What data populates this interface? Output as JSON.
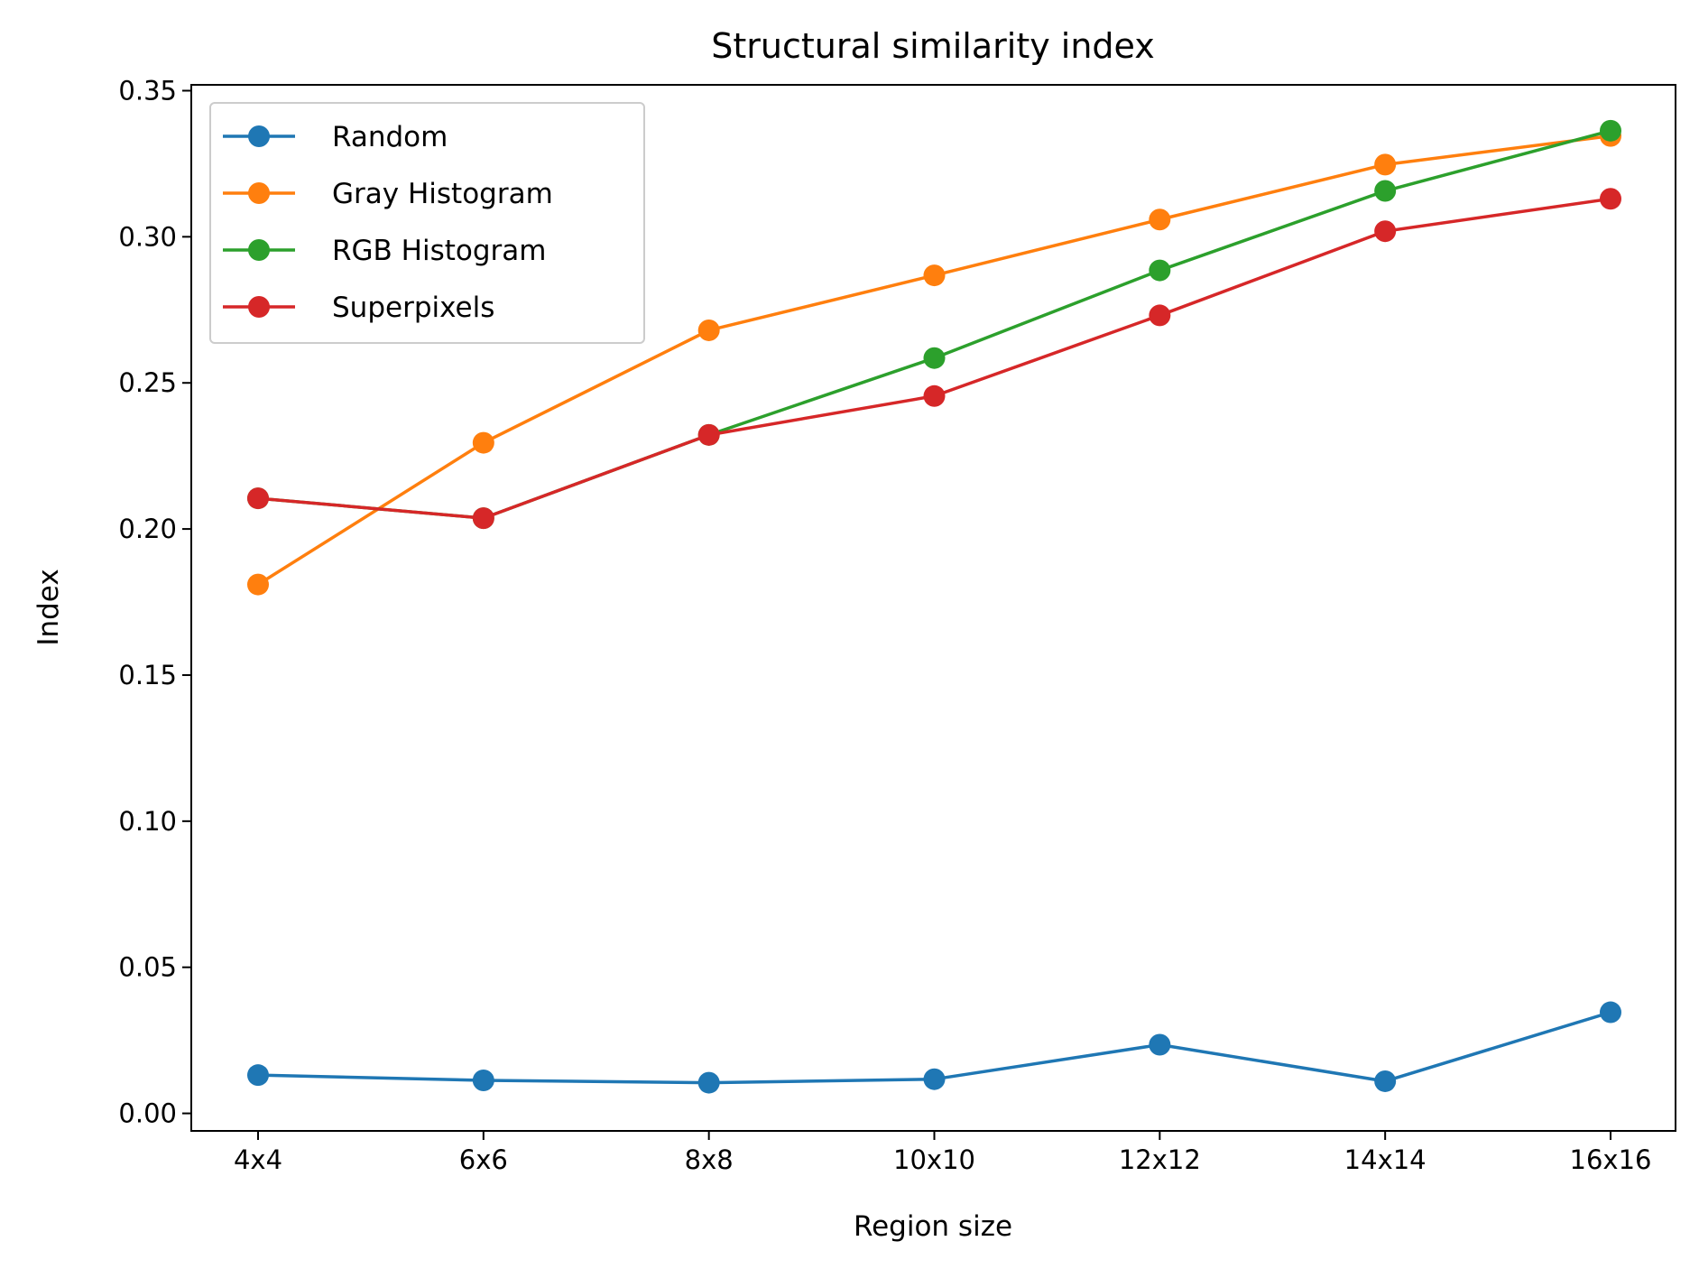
{
  "chart_data": {
    "type": "line",
    "title": "Structural similarity index",
    "xlabel": "Region size",
    "ylabel": "Index",
    "categories": [
      "4x4",
      "6x6",
      "8x8",
      "10x10",
      "12x12",
      "14x14",
      "16x16"
    ],
    "ylim": [
      -0.006,
      0.352
    ],
    "yticks": [
      0.0,
      0.05,
      0.1,
      0.15,
      0.2,
      0.25,
      0.3,
      0.35
    ],
    "ytick_labels": [
      "0.00",
      "0.05",
      "0.10",
      "0.15",
      "0.20",
      "0.25",
      "0.30",
      "0.35"
    ],
    "grid": false,
    "legend_position": "top-left",
    "series": [
      {
        "name": "Random",
        "color": "#1f77b4",
        "values": [
          0.0131,
          0.0113,
          0.0105,
          0.0117,
          0.0235,
          0.011,
          0.0346
        ]
      },
      {
        "name": "Gray Histogram",
        "color": "#ff7f0e",
        "values": [
          0.181,
          0.2295,
          0.268,
          0.2868,
          0.3059,
          0.3247,
          0.3345
        ]
      },
      {
        "name": "RGB Histogram",
        "color": "#2ca02c",
        "values": [
          0.2105,
          0.2037,
          0.2322,
          0.2585,
          0.2885,
          0.3157,
          0.3363
        ]
      },
      {
        "name": "Superpixels",
        "color": "#d62728",
        "values": [
          0.2105,
          0.2037,
          0.2322,
          0.2455,
          0.2731,
          0.3019,
          0.313
        ]
      }
    ]
  }
}
